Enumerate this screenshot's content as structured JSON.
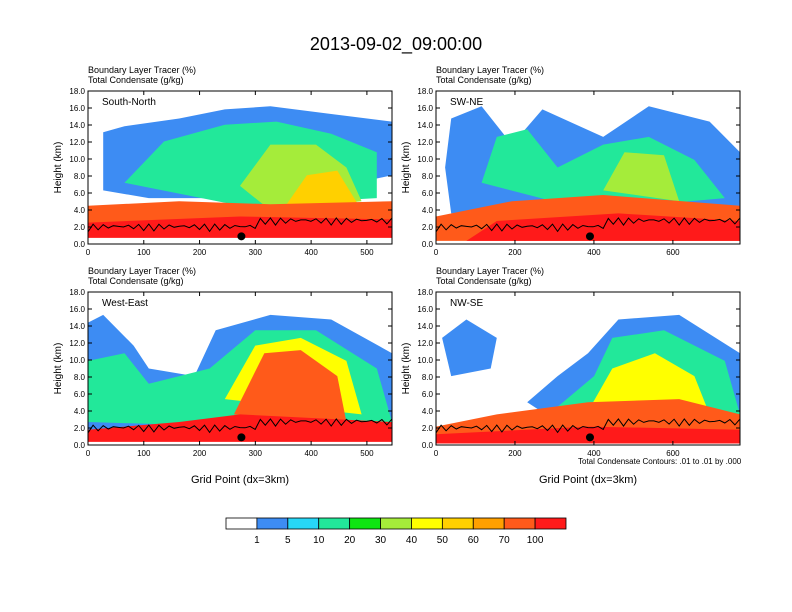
{
  "figure": {
    "title": "2013-09-02_09:00:00",
    "footnote": "Total Condensate Contours: .01 to .01 by .000"
  },
  "chart_data": [
    {
      "type": "heatmap",
      "panel": "South-North",
      "subtitle_line1": "Boundary Layer Tracer   (%)",
      "subtitle_line2": "Total Condensate   (g/kg)",
      "ylabel": "Height (km)",
      "xlabel": "",
      "xlim": [
        0,
        545
      ],
      "ylim": [
        0,
        18
      ],
      "xticks": [
        0,
        100,
        200,
        300,
        400,
        500
      ],
      "yticks": [
        "0.0",
        "2.0",
        "4.0",
        "6.0",
        "8.0",
        "10.0",
        "12.0",
        "14.0",
        "16.0",
        "18.0"
      ],
      "marker_x": 275
    },
    {
      "type": "heatmap",
      "panel": "SW-NE",
      "subtitle_line1": "Boundary Layer Tracer   (%)",
      "subtitle_line2": "Total Condensate   (g/kg)",
      "ylabel": "Height (km)",
      "xlabel": "",
      "xlim": [
        0,
        770
      ],
      "ylim": [
        0,
        18
      ],
      "xticks": [
        0,
        200,
        400,
        600
      ],
      "yticks": [
        "0.0",
        "2.0",
        "4.0",
        "6.0",
        "8.0",
        "10.0",
        "12.0",
        "14.0",
        "16.0",
        "18.0"
      ],
      "marker_x": 390
    },
    {
      "type": "heatmap",
      "panel": "West-East",
      "subtitle_line1": "Boundary Layer Tracer   (%)",
      "subtitle_line2": "Total Condensate   (g/kg)",
      "ylabel": "Height (km)",
      "xlabel": "Grid Point (dx=3km)",
      "xlim": [
        0,
        545
      ],
      "ylim": [
        0,
        18
      ],
      "xticks": [
        0,
        100,
        200,
        300,
        400,
        500
      ],
      "yticks": [
        "0.0",
        "2.0",
        "4.0",
        "6.0",
        "8.0",
        "10.0",
        "12.0",
        "14.0",
        "16.0",
        "18.0"
      ],
      "marker_x": 275
    },
    {
      "type": "heatmap",
      "panel": "NW-SE",
      "subtitle_line1": "Boundary Layer Tracer   (%)",
      "subtitle_line2": "Total Condensate   (g/kg)",
      "ylabel": "Height (km)",
      "xlabel": "Grid Point (dx=3km)",
      "xlim": [
        0,
        770
      ],
      "ylim": [
        0,
        18
      ],
      "xticks": [
        0,
        200,
        400,
        600
      ],
      "yticks": [
        "0.0",
        "2.0",
        "4.0",
        "6.0",
        "8.0",
        "10.0",
        "12.0",
        "14.0",
        "16.0",
        "18.0"
      ],
      "marker_x": 390
    }
  ],
  "colorbar": {
    "colors": [
      "#ffffff",
      "#3d8cf3",
      "#27d7f7",
      "#22e89a",
      "#0ee512",
      "#a5ec3a",
      "#ffff00",
      "#ffd000",
      "#ffa000",
      "#ff5a1a",
      "#ff1a1a"
    ],
    "labels": [
      "1",
      "5",
      "10",
      "20",
      "30",
      "40",
      "50",
      "60",
      "70",
      "100"
    ]
  }
}
